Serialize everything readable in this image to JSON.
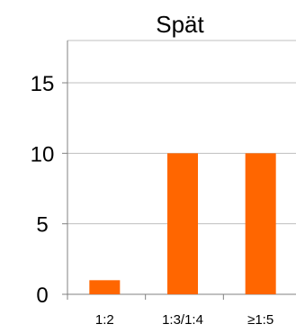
{
  "chart_data": {
    "type": "bar",
    "title": "Spät",
    "categories": [
      "1:2",
      "1:3/1:4",
      "≥1:5"
    ],
    "values": [
      1,
      10,
      10
    ],
    "ylim": [
      0,
      18
    ],
    "yticks": [
      0,
      5,
      10,
      15
    ],
    "grid": true,
    "xlabel": "",
    "ylabel": "",
    "bar_color": "#FF6600",
    "grid_color": "#BFBFBF",
    "axis_color": "#808080"
  }
}
